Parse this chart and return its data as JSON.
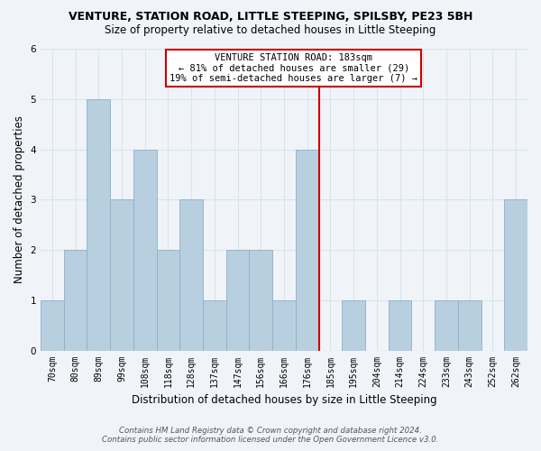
{
  "title": "VENTURE, STATION ROAD, LITTLE STEEPING, SPILSBY, PE23 5BH",
  "subtitle": "Size of property relative to detached houses in Little Steeping",
  "xlabel": "Distribution of detached houses by size in Little Steeping",
  "ylabel": "Number of detached properties",
  "bar_labels": [
    "70sqm",
    "80sqm",
    "89sqm",
    "99sqm",
    "108sqm",
    "118sqm",
    "128sqm",
    "137sqm",
    "147sqm",
    "156sqm",
    "166sqm",
    "176sqm",
    "185sqm",
    "195sqm",
    "204sqm",
    "214sqm",
    "224sqm",
    "233sqm",
    "243sqm",
    "252sqm",
    "262sqm"
  ],
  "bar_heights": [
    1,
    2,
    5,
    3,
    4,
    2,
    3,
    1,
    2,
    2,
    1,
    4,
    0,
    1,
    0,
    1,
    0,
    1,
    1,
    0,
    3
  ],
  "bar_color": "#b8cfe0",
  "bar_edge_color": "#8ab0cc",
  "vline_x_index": 12,
  "vline_color": "#cc0000",
  "annotation_title": "VENTURE STATION ROAD: 183sqm",
  "annotation_line1": "← 81% of detached houses are smaller (29)",
  "annotation_line2": "19% of semi-detached houses are larger (7) →",
  "annotation_box_color": "#ffffff",
  "annotation_box_edge": "#cc0000",
  "ylim": [
    0,
    6
  ],
  "yticks": [
    0,
    1,
    2,
    3,
    4,
    5,
    6
  ],
  "footnote1": "Contains HM Land Registry data © Crown copyright and database right 2024.",
  "footnote2": "Contains public sector information licensed under the Open Government Licence v3.0.",
  "bg_color": "#f0f4f8",
  "plot_bg_color": "#f0f4f8",
  "grid_color": "#d8e4ed",
  "title_fontsize": 9,
  "subtitle_fontsize": 8.5,
  "axis_label_fontsize": 8.5,
  "tick_fontsize": 7,
  "annot_fontsize": 7.5
}
